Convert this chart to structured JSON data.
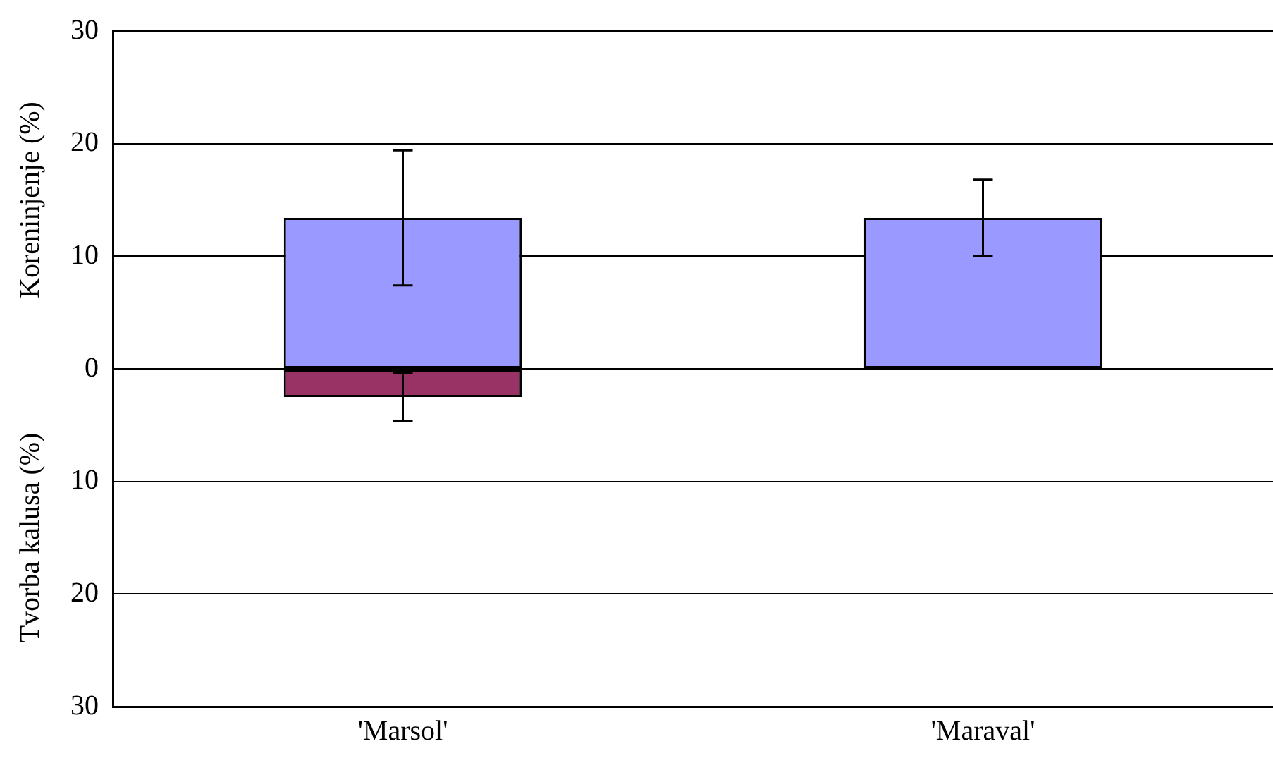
{
  "chart_data": {
    "type": "bar",
    "stacked": true,
    "categories": [
      "'Marsol'",
      "'Maraval'"
    ],
    "series": [
      {
        "color": "#9999ff",
        "values": [
          13.4,
          13.4
        ],
        "errors": [
          6,
          3.4
        ]
      },
      {
        "color": "#993366",
        "values": [
          -2.5,
          null
        ],
        "errors": [
          2.1,
          null
        ]
      }
    ],
    "ylabel": "Koreninjenje (%)",
    "annotations": [
      "Tvorba kalusa (%)"
    ],
    "ylim": [
      -30,
      30
    ],
    "yticks": [
      {
        "value": -30,
        "label": "30"
      },
      {
        "value": -20,
        "label": "20"
      },
      {
        "value": -10,
        "label": "10"
      },
      0,
      10,
      20,
      30
    ],
    "grid": "y",
    "legend": false
  }
}
